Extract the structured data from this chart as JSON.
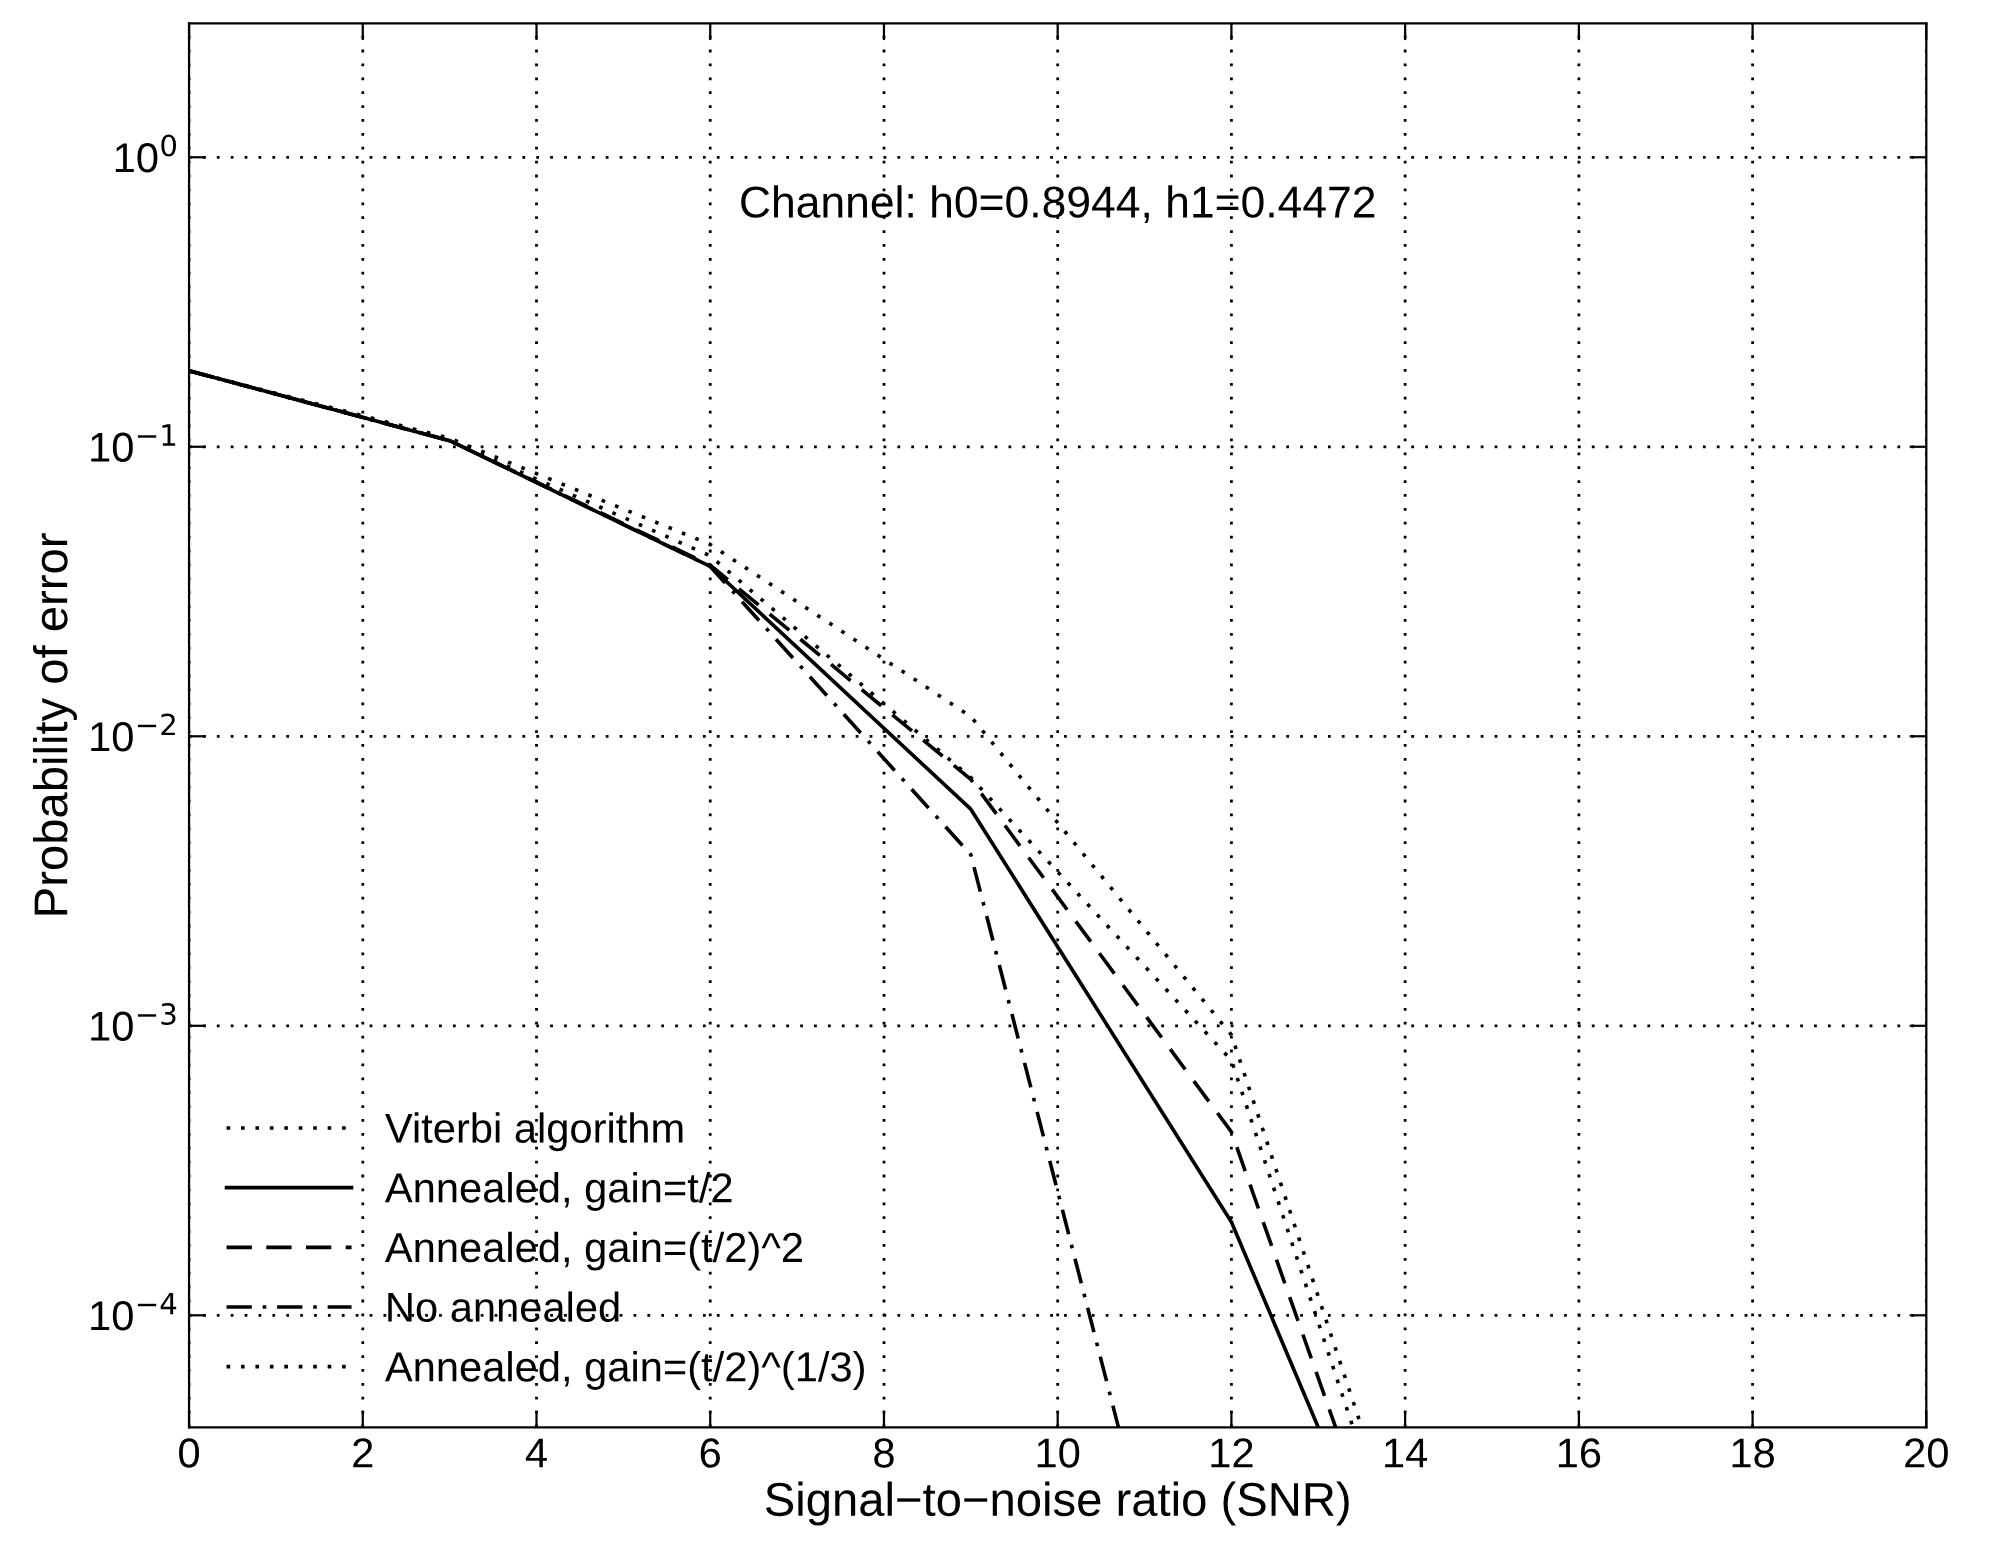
{
  "chart_data": {
    "type": "line",
    "xlabel": "Signal−to−noise ratio (SNR)",
    "ylabel": "Probability of error",
    "annotations": [
      "Channel: h0=0.8944, h1=0.4472"
    ],
    "series": [
      {
        "name": "Viterbi algorithm",
        "color": "#000000",
        "line_style": "dotted",
        "x": [
          0,
          3,
          6,
          9,
          12,
          13.4
        ],
        "values": [
          0.183,
          0.105,
          0.042,
          0.0072,
          0.00076,
          4.1e-05
        ]
      },
      {
        "name": "Annealed, gain=t/2",
        "color": "#000000",
        "line_style": "solid",
        "x": [
          0,
          3,
          6,
          9,
          12,
          13.0
        ],
        "values": [
          0.183,
          0.105,
          0.0386,
          0.0056,
          0.00021,
          4.1e-05
        ]
      },
      {
        "name": "Annealed, gain=(t/2)^2",
        "color": "#000000",
        "line_style": "dashed",
        "x": [
          0,
          3,
          6,
          9,
          12,
          13.2
        ],
        "values": [
          0.183,
          0.105,
          0.039,
          0.0071,
          0.00043,
          4.1e-05
        ]
      },
      {
        "name": "No annealed",
        "color": "#000000",
        "line_style": "dashdot",
        "x": [
          0,
          3,
          6,
          9,
          10.7
        ],
        "values": [
          0.183,
          0.105,
          0.0386,
          0.0039,
          4.1e-05
        ]
      },
      {
        "name": "Annealed, gain=(t/2)^(1/3)",
        "color": "#000000",
        "line_style": "dotted",
        "x": [
          0,
          3,
          6,
          9,
          12,
          13.5
        ],
        "values": [
          0.183,
          0.107,
          0.046,
          0.0117,
          0.00093,
          4.1e-05
        ]
      }
    ],
    "log": "y",
    "xlim": [
      0,
      20
    ],
    "ylim": [
      4.1e-05,
      2.9
    ],
    "xticks": [
      0,
      2,
      4,
      6,
      8,
      10,
      12,
      14,
      16,
      18,
      20
    ],
    "yticks": [
      {
        "value": 0.0001,
        "label": "10$^{−4}$"
      },
      {
        "value": 0.001,
        "label": "10$^{−3}$"
      },
      {
        "value": 0.01,
        "label": "10$^{−2}$"
      },
      {
        "value": 0.1,
        "label": "10$^{−1}$"
      },
      {
        "value": 1,
        "label": "10$^{0}$"
      }
    ],
    "grid": true,
    "legend": "bottom left"
  }
}
